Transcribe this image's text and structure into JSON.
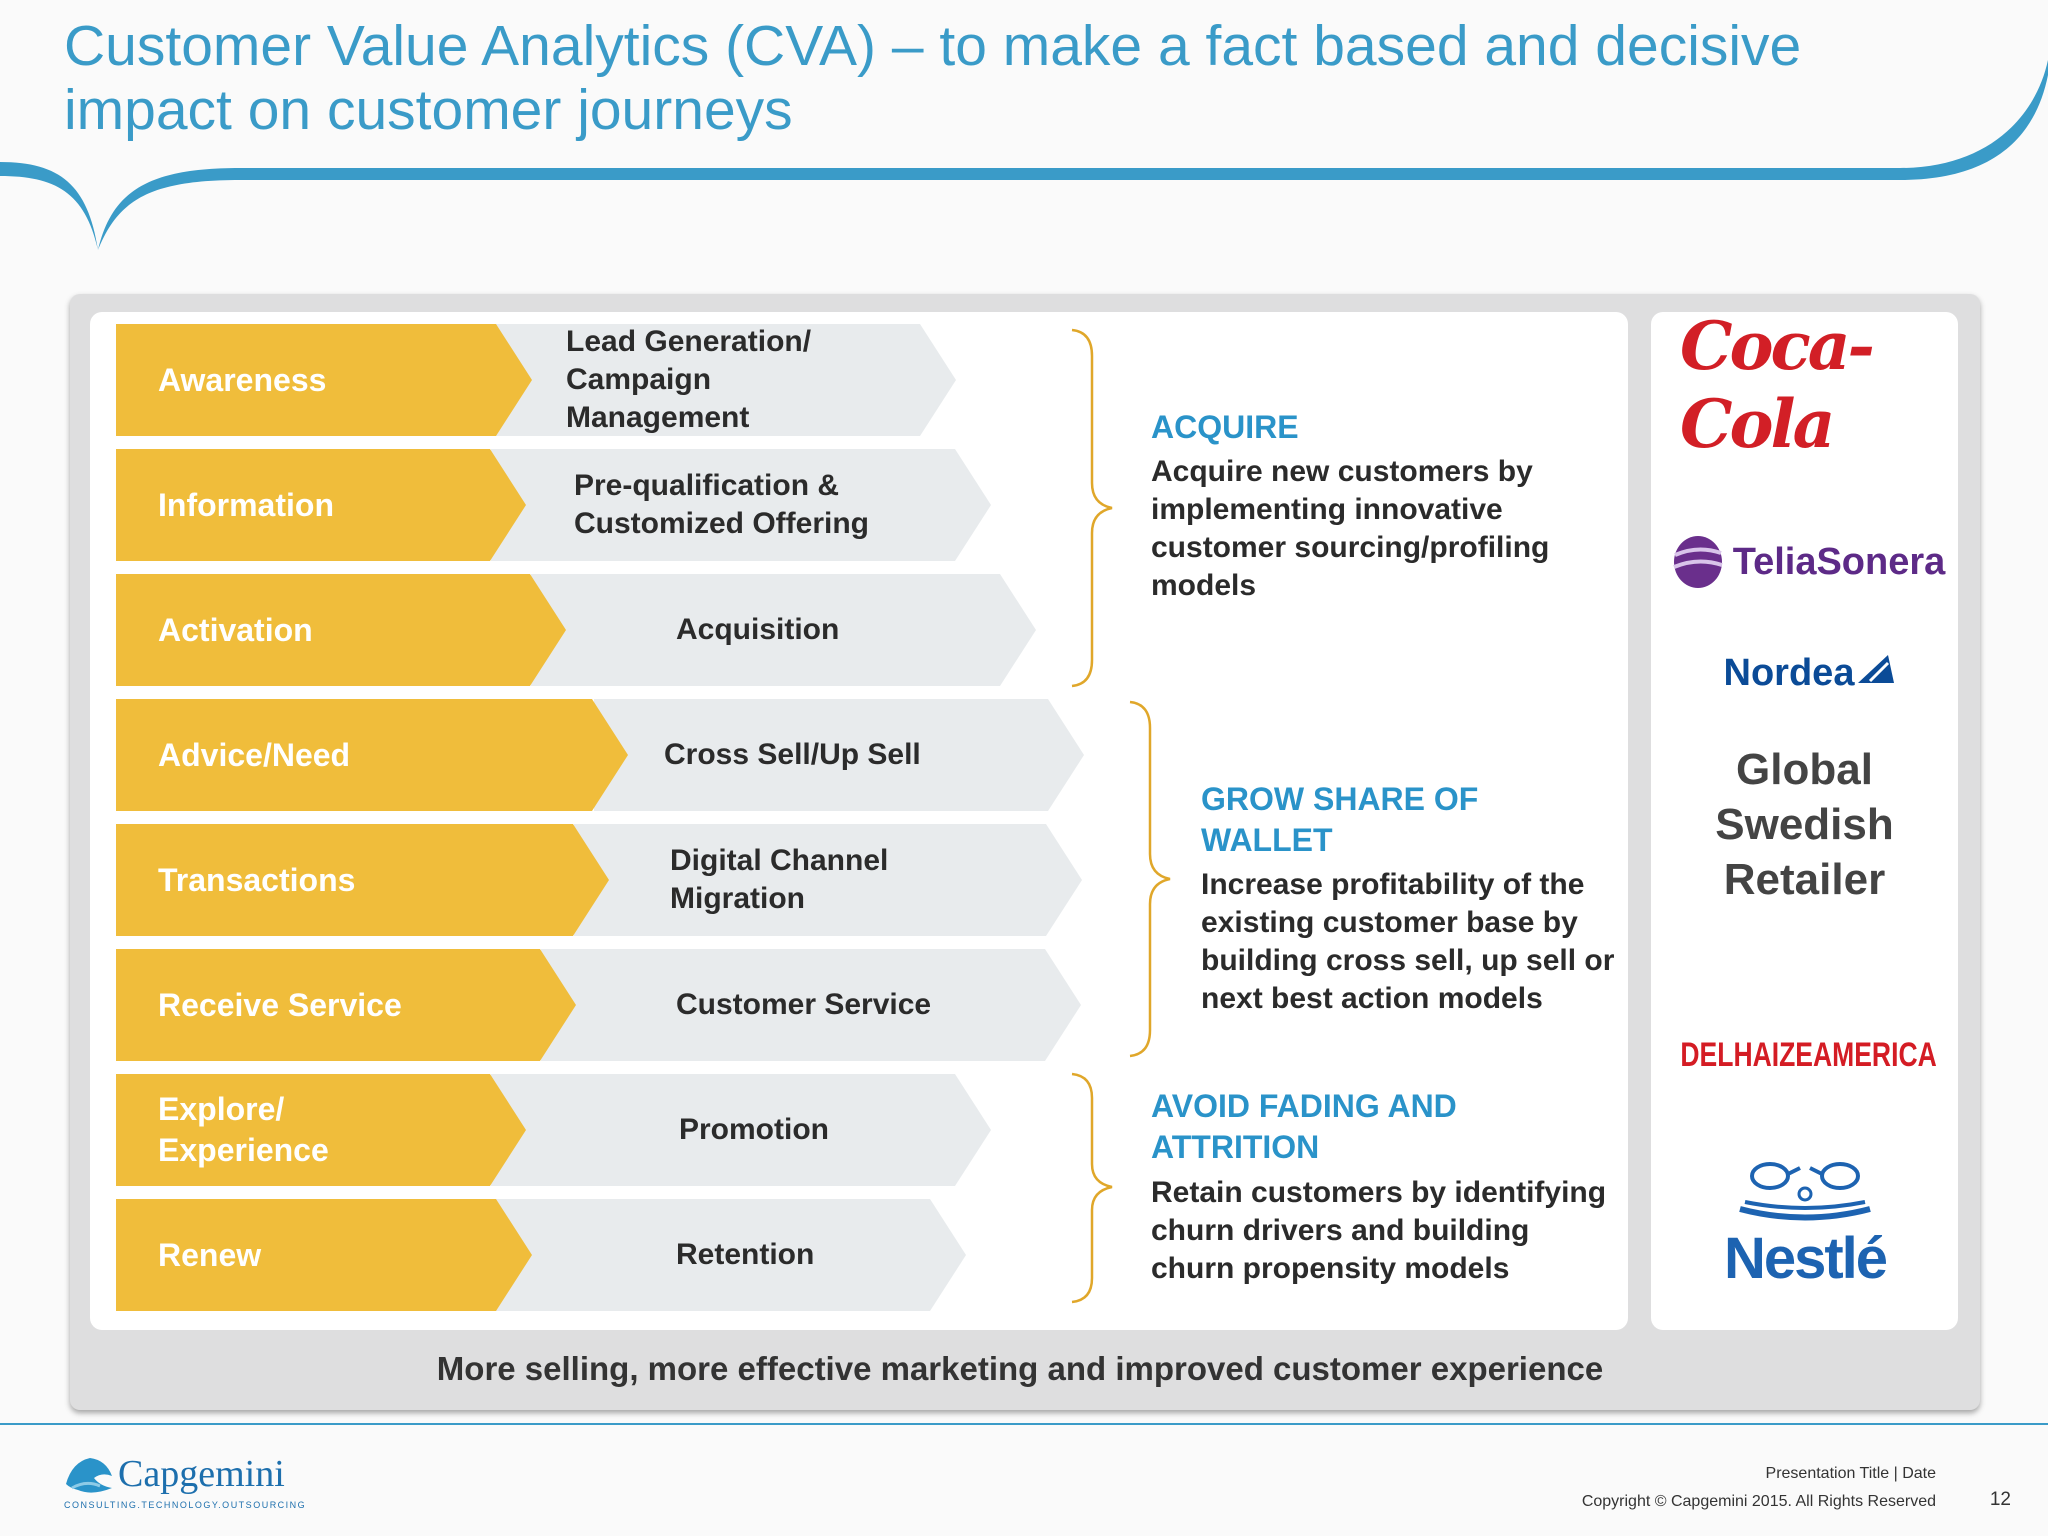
{
  "title": {
    "line1": "Customer Value Analytics (CVA) – to make a fact based and decisive",
    "line2": "impact on customer journeys"
  },
  "rows": [
    {
      "stage": "Awareness",
      "activity": "Lead Generation/ Campaign Management"
    },
    {
      "stage": "Information",
      "activity": "Pre-qualification & Customized Offering"
    },
    {
      "stage": "Activation",
      "activity": "Acquisition"
    },
    {
      "stage": "Advice/Need",
      "activity": "Cross Sell/Up Sell"
    },
    {
      "stage": "Transactions",
      "activity": "Digital Channel Migration"
    },
    {
      "stage": "Receive Service",
      "activity": "Customer Service"
    },
    {
      "stage": "Explore/ Experience",
      "activity": "Promotion"
    },
    {
      "stage": "Renew",
      "activity": "Retention"
    }
  ],
  "objectives": {
    "acquire": {
      "heading": "ACQUIRE",
      "body": "Acquire new customers by implementing innovative customer sourcing/profiling models"
    },
    "grow": {
      "heading": "GROW SHARE OF WALLET",
      "body": "Increase profitability of the existing customer base by building cross sell, up sell or next best action models"
    },
    "avoid": {
      "heading": "AVOID FADING AND ATTRITION",
      "body": "Retain customers by identifying churn drivers and building churn propensity models"
    }
  },
  "tagline": "More selling, more effective marketing and improved customer experience",
  "clients": {
    "coca_cola": "Coca-Cola",
    "telia": "TeliaSonera",
    "nordea": "Nordea",
    "retailer": [
      "Global",
      "Swedish",
      "Retailer"
    ],
    "delhaize_left": "DELHAIZE",
    "delhaize_right": "AMERICA",
    "nestle": "Nestlé"
  },
  "footer": {
    "brand": "Capgemini",
    "brand_tagline": "CONSULTING.TECHNOLOGY.OUTSOURCING",
    "presentation": "Presentation Title | Date",
    "copyright": "Copyright © Capgemini 2015. All Rights Reserved",
    "page_number": "12"
  },
  "colors": {
    "accent_blue": "#3a9bc8",
    "stage_yellow": "#f0bd3b",
    "activity_grey": "#e8ebed",
    "coca_red": "#d21f26",
    "nestle_blue": "#1d63b1"
  }
}
